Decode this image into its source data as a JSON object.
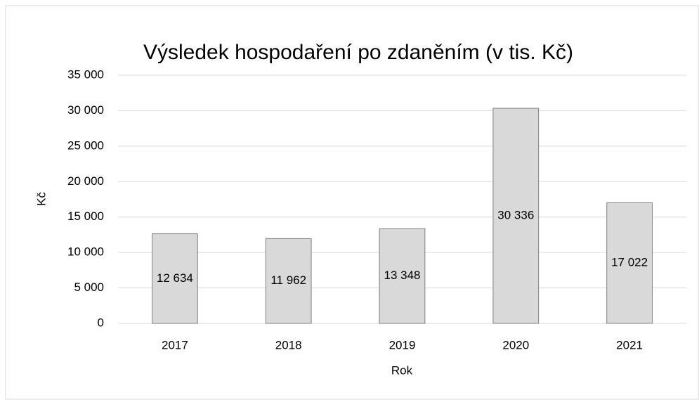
{
  "chart_data": {
    "type": "bar",
    "title": "Výsledek hospodaření po zdaněním (v tis. Kč)",
    "x_label": "Rok",
    "y_label": "Kč",
    "categories": [
      "2017",
      "2018",
      "2019",
      "2020",
      "2021"
    ],
    "values": [
      12634,
      11962,
      13348,
      30336,
      17022
    ],
    "value_labels": [
      "12 634",
      "11 962",
      "13 348",
      "30 336",
      "17 022"
    ],
    "color": "#d9d9d9",
    "edge_color": "#7f7f7f",
    "ylim": [
      0,
      35000
    ],
    "yticks": [
      0,
      {
        "value": 5000,
        "label": "5 000"
      },
      {
        "value": 10000,
        "label": "10 000"
      },
      {
        "value": 15000,
        "label": "15 000"
      },
      {
        "value": 20000,
        "label": "20 000"
      },
      {
        "value": 25000,
        "label": "25 000"
      },
      {
        "value": 30000,
        "label": "30 000"
      },
      {
        "value": 35000,
        "label": "35 000"
      }
    ],
    "grid": true
  }
}
